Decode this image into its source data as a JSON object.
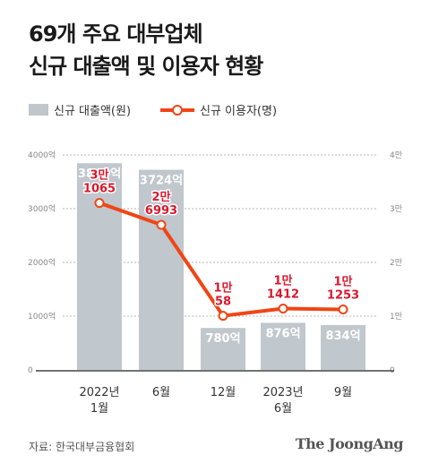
{
  "title_line1": "69개 주요 대부업체",
  "title_line2": "신규 대출액 및 이용자 현황",
  "legend": {
    "bar": "신규 대출액(원)",
    "line": "신규 이용자(명)"
  },
  "source": "자료: 한국대부금융협회",
  "brand": "The JoongAng",
  "colors": {
    "bar": "#c0c7cd",
    "line": "#f04515",
    "bar_label": "#ffffff",
    "line_label": "#d8182c"
  },
  "chart_data": {
    "type": "bar",
    "categories": [
      "2022년\n1월",
      "6월",
      "12월",
      "2023년\n6월",
      "9월"
    ],
    "series": [
      {
        "name": "신규 대출액(원)",
        "type": "bar",
        "axis": "left",
        "values": [
          3846,
          3724,
          780,
          876,
          834
        ],
        "labels": [
          "3846억",
          "3724억",
          "780억",
          "876억",
          "834억"
        ]
      },
      {
        "name": "신규 이용자(명)",
        "type": "line",
        "axis": "right",
        "values": [
          31065,
          26993,
          10058,
          11412,
          11253
        ],
        "labels": [
          "3만\n1065",
          "2만\n6993",
          "1만\n58",
          "1만\n1412",
          "1만\n1253"
        ]
      }
    ],
    "y_left": {
      "lim": [
        0,
        4000
      ],
      "ticks": [
        0,
        1000,
        2000,
        3000,
        4000
      ],
      "tick_labels": [
        "0",
        "1000억",
        "2000억",
        "3000억",
        "4000억"
      ]
    },
    "y_right": {
      "lim": [
        0,
        40000
      ],
      "ticks": [
        0,
        10000,
        20000,
        30000,
        40000
      ],
      "tick_labels": [
        "0",
        "1만",
        "2만",
        "3만",
        "4만"
      ]
    },
    "grid": true
  }
}
